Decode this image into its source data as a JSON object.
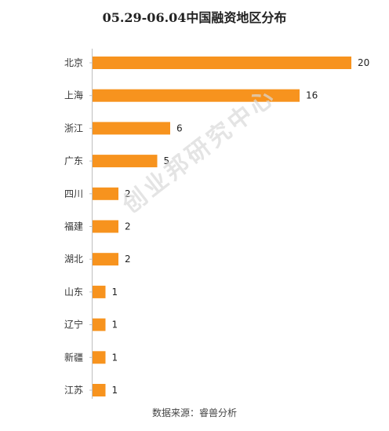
{
  "chart_data": {
    "type": "bar",
    "orientation": "horizontal",
    "title": "05.29-06.04中国融资地区分布",
    "categories": [
      "北京",
      "上海",
      "浙江",
      "广东",
      "四川",
      "福建",
      "湖北",
      "山东",
      "辽宁",
      "新疆",
      "江苏"
    ],
    "values": [
      20,
      16,
      6,
      5,
      2,
      2,
      2,
      1,
      1,
      1,
      1
    ],
    "xlim": [
      0,
      20
    ],
    "bar_color": "#F7931E",
    "grid": false,
    "legend": "none"
  },
  "watermark": "创业邦研究中心",
  "source": "数据来源：睿兽分析"
}
